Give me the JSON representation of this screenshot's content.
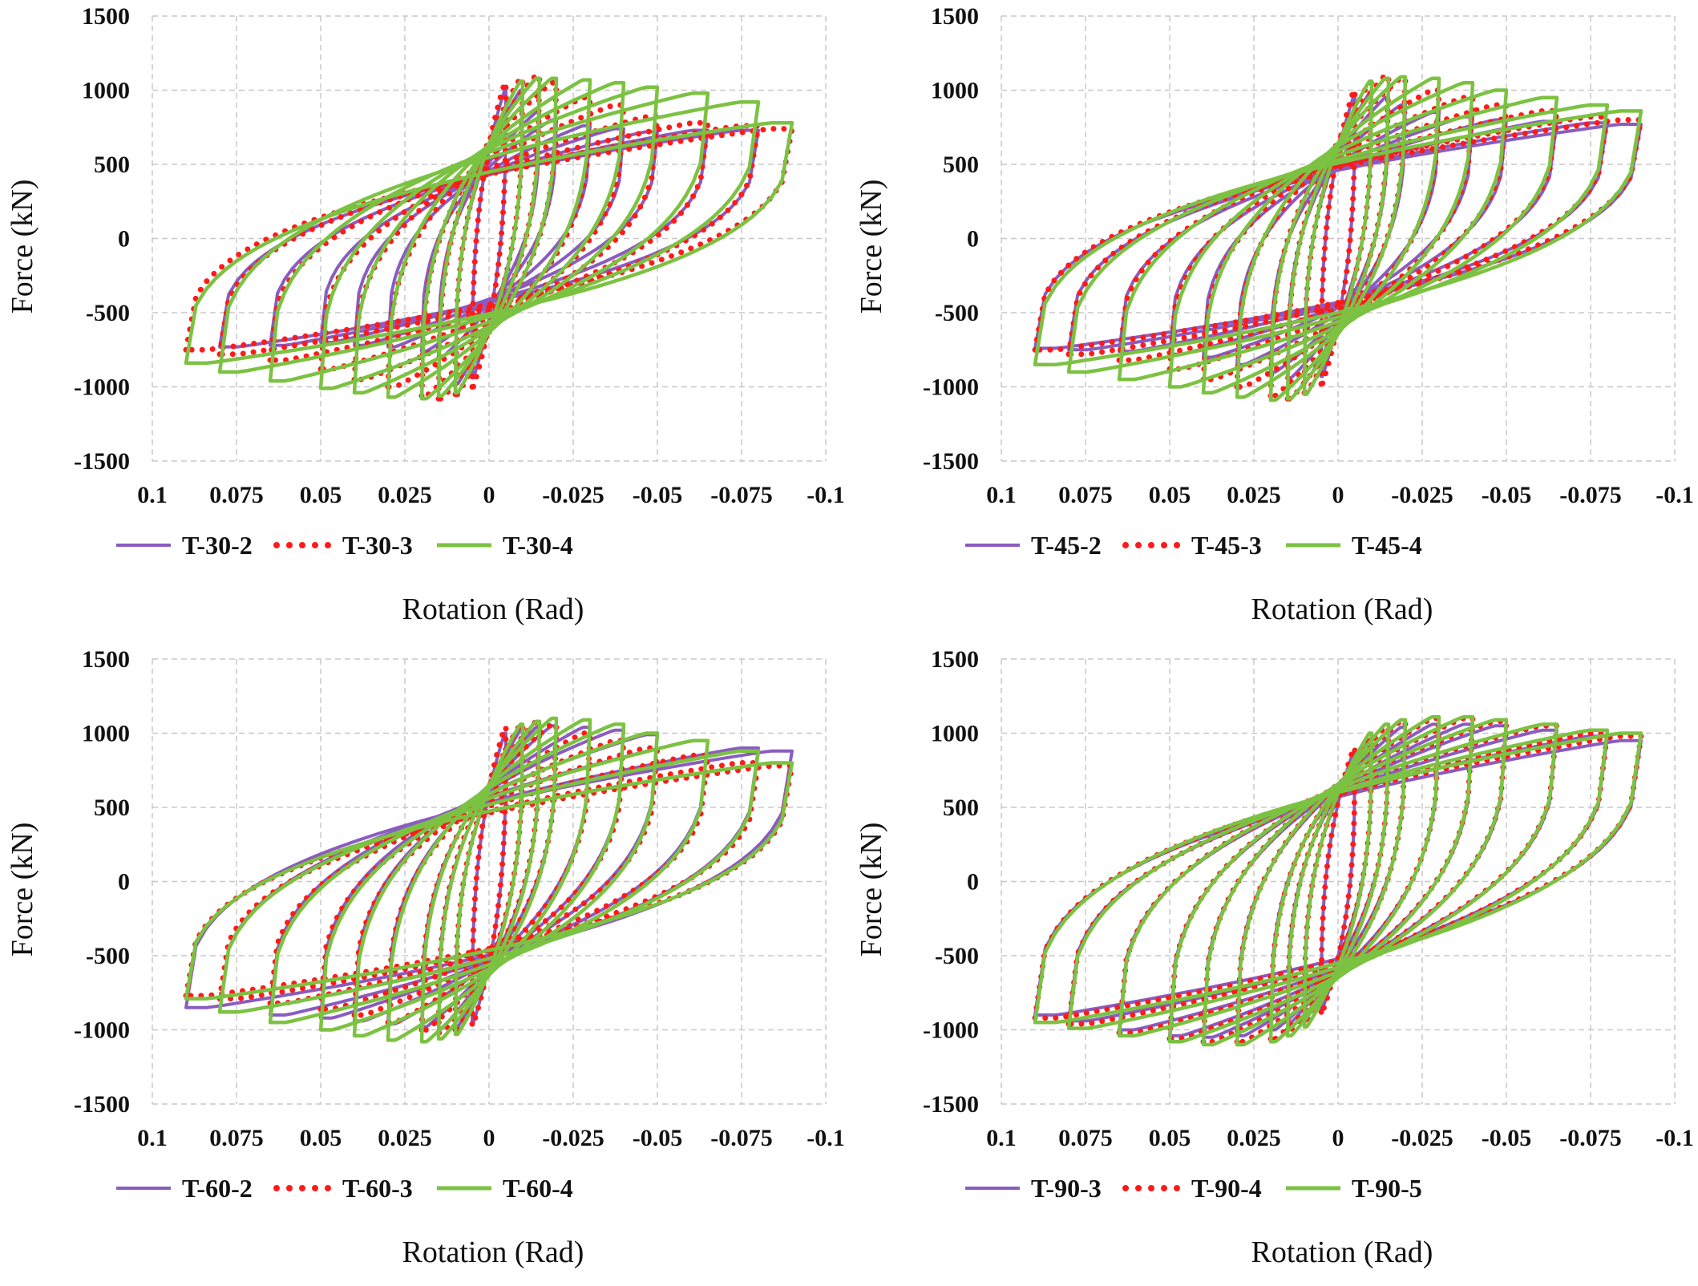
{
  "chart_data": [
    {
      "type": "line",
      "panel": "top-left",
      "xlabel": "Rotation (Rad)",
      "ylabel": "Force (kN)",
      "xlim": [
        0.1,
        -0.1
      ],
      "ylim": [
        -1500,
        1500
      ],
      "x_reversed": true,
      "x_ticks": [
        "0.1",
        "0.075",
        "0.05",
        "0.025",
        "0",
        "-0.025",
        "-0.05",
        "-0.075",
        "-0.1"
      ],
      "y_ticks": [
        "1500",
        "1000",
        "500",
        "0",
        "-500",
        "-1000",
        "-1500"
      ],
      "grid": true,
      "legend_position": "bottom",
      "series": [
        {
          "name": "T-30-2",
          "style": "solid",
          "color": "#8a5cc0",
          "amplitudes": [
            0.005,
            0.01,
            0.015,
            0.02,
            0.03,
            0.04,
            0.05,
            0.065,
            0.08
          ],
          "peak_force": [
            1000,
            1000,
            850,
            800,
            760,
            740,
            720,
            730,
            730
          ],
          "trough_force": [
            -940,
            -980,
            -800,
            -760,
            -730,
            -720,
            -700,
            -720,
            -730
          ]
        },
        {
          "name": "T-30-3",
          "style": "dotted",
          "color": "#ff1a1a",
          "amplitudes": [
            0.005,
            0.01,
            0.015,
            0.02,
            0.03,
            0.04,
            0.05,
            0.065,
            0.08,
            0.09
          ],
          "peak_force": [
            1050,
            1080,
            1100,
            1050,
            950,
            900,
            820,
            780,
            760,
            740
          ],
          "trough_force": [
            -1000,
            -1050,
            -1080,
            -1060,
            -1000,
            -950,
            -880,
            -820,
            -780,
            -750
          ]
        },
        {
          "name": "T-30-4",
          "style": "solid",
          "color": "#7cc242",
          "amplitudes": [
            0.01,
            0.015,
            0.02,
            0.03,
            0.04,
            0.05,
            0.065,
            0.08,
            0.09
          ],
          "peak_force": [
            1060,
            1080,
            1080,
            1070,
            1050,
            1020,
            980,
            920,
            780
          ],
          "trough_force": [
            -1040,
            -1060,
            -1080,
            -1070,
            -1040,
            -1010,
            -960,
            -900,
            -840
          ]
        }
      ]
    },
    {
      "type": "line",
      "panel": "top-right",
      "xlabel": "Rotation (Rad)",
      "ylabel": "Force (kN)",
      "xlim": [
        0.1,
        -0.1
      ],
      "ylim": [
        -1500,
        1500
      ],
      "x_reversed": true,
      "x_ticks": [
        "0.1",
        "0.075",
        "0.05",
        "0.025",
        "0",
        "-0.025",
        "-0.05",
        "-0.075",
        "-0.1"
      ],
      "y_ticks": [
        "1500",
        "1000",
        "500",
        "0",
        "-500",
        "-1000",
        "-1500"
      ],
      "grid": true,
      "legend_position": "bottom",
      "series": [
        {
          "name": "T-45-2",
          "style": "solid",
          "color": "#8a5cc0",
          "amplitudes": [
            0.005,
            0.01,
            0.015,
            0.02,
            0.03,
            0.04,
            0.05,
            0.065,
            0.08,
            0.09
          ],
          "peak_force": [
            960,
            980,
            950,
            900,
            850,
            820,
            800,
            790,
            780,
            770
          ],
          "trough_force": [
            -930,
            -960,
            -940,
            -900,
            -850,
            -800,
            -780,
            -760,
            -750,
            -740
          ]
        },
        {
          "name": "T-45-3",
          "style": "dotted",
          "color": "#ff1a1a",
          "amplitudes": [
            0.005,
            0.01,
            0.015,
            0.02,
            0.03,
            0.04,
            0.05,
            0.065,
            0.08,
            0.09
          ],
          "peak_force": [
            1000,
            1050,
            1100,
            1080,
            1000,
            950,
            900,
            860,
            820,
            800
          ],
          "trough_force": [
            -980,
            -1040,
            -1080,
            -1060,
            -1000,
            -950,
            -880,
            -820,
            -780,
            -750
          ]
        },
        {
          "name": "T-45-4",
          "style": "solid",
          "color": "#7cc242",
          "amplitudes": [
            0.01,
            0.015,
            0.02,
            0.03,
            0.04,
            0.05,
            0.065,
            0.08,
            0.09
          ],
          "peak_force": [
            1060,
            1080,
            1090,
            1080,
            1050,
            1000,
            950,
            900,
            860
          ],
          "trough_force": [
            -1050,
            -1080,
            -1090,
            -1070,
            -1040,
            -1000,
            -950,
            -900,
            -850
          ]
        }
      ]
    },
    {
      "type": "line",
      "panel": "bottom-left",
      "xlabel": "Rotation (Rad)",
      "ylabel": "Force (kN)",
      "xlim": [
        0.1,
        -0.1
      ],
      "ylim": [
        -1500,
        1500
      ],
      "x_reversed": true,
      "x_ticks": [
        "0.1",
        "0.075",
        "0.05",
        "0.025",
        "0",
        "-0.025",
        "-0.05",
        "-0.075",
        "-0.1"
      ],
      "y_ticks": [
        "1500",
        "1000",
        "500",
        "0",
        "-500",
        "-1000",
        "-1500"
      ],
      "grid": true,
      "legend_position": "bottom",
      "series": [
        {
          "name": "T-60-2",
          "style": "solid",
          "color": "#8a5cc0",
          "amplitudes": [
            0.005,
            0.01,
            0.015,
            0.02,
            0.03,
            0.04,
            0.05,
            0.065,
            0.08,
            0.09
          ],
          "peak_force": [
            1000,
            1020,
            1040,
            1050,
            1040,
            1020,
            990,
            950,
            900,
            880
          ],
          "trough_force": [
            -950,
            -980,
            -990,
            -980,
            -960,
            -940,
            -920,
            -900,
            -880,
            -850
          ]
        },
        {
          "name": "T-60-3",
          "style": "dotted",
          "color": "#ff1a1a",
          "amplitudes": [
            0.005,
            0.01,
            0.015,
            0.02,
            0.03,
            0.04,
            0.05,
            0.065,
            0.08,
            0.09
          ],
          "peak_force": [
            1040,
            1060,
            1080,
            1060,
            1000,
            950,
            900,
            850,
            800,
            780
          ],
          "trough_force": [
            -960,
            -1000,
            -1020,
            -1000,
            -950,
            -900,
            -860,
            -820,
            -790,
            -770
          ]
        },
        {
          "name": "T-60-4",
          "style": "solid",
          "color": "#7cc242",
          "amplitudes": [
            0.01,
            0.015,
            0.02,
            0.03,
            0.04,
            0.05,
            0.065,
            0.08,
            0.09
          ],
          "peak_force": [
            1060,
            1080,
            1100,
            1090,
            1060,
            1000,
            950,
            880,
            800
          ],
          "trough_force": [
            -1030,
            -1060,
            -1080,
            -1070,
            -1040,
            -1000,
            -950,
            -880,
            -790
          ]
        }
      ]
    },
    {
      "type": "line",
      "panel": "bottom-right",
      "xlabel": "Rotation (Rad)",
      "ylabel": "Force (kN)",
      "xlim": [
        0.1,
        -0.1
      ],
      "ylim": [
        -1500,
        1500
      ],
      "x_reversed": true,
      "x_ticks": [
        "0.1",
        "0.075",
        "0.05",
        "0.025",
        "0",
        "-0.025",
        "-0.05",
        "-0.075",
        "-0.1"
      ],
      "y_ticks": [
        "1500",
        "1000",
        "500",
        "0",
        "-500",
        "-1000",
        "-1500"
      ],
      "grid": true,
      "legend_position": "bottom",
      "series": [
        {
          "name": "T-90-3",
          "style": "solid",
          "color": "#8a5cc0",
          "amplitudes": [
            0.005,
            0.01,
            0.015,
            0.02,
            0.03,
            0.04,
            0.05,
            0.065,
            0.08,
            0.09
          ],
          "peak_force": [
            880,
            950,
            1000,
            1040,
            1060,
            1060,
            1050,
            1020,
            980,
            950
          ],
          "trough_force": [
            -860,
            -900,
            -950,
            -1000,
            -1040,
            -1050,
            -1040,
            -1000,
            -940,
            -900
          ]
        },
        {
          "name": "T-90-4",
          "style": "dotted",
          "color": "#ff1a1a",
          "amplitudes": [
            0.005,
            0.01,
            0.015,
            0.02,
            0.03,
            0.04,
            0.05,
            0.065,
            0.08,
            0.09
          ],
          "peak_force": [
            900,
            980,
            1040,
            1080,
            1100,
            1100,
            1080,
            1050,
            1000,
            980
          ],
          "trough_force": [
            -880,
            -940,
            -1000,
            -1060,
            -1080,
            -1080,
            -1060,
            -1020,
            -960,
            -920
          ]
        },
        {
          "name": "T-90-5",
          "style": "solid",
          "color": "#7cc242",
          "amplitudes": [
            0.01,
            0.015,
            0.02,
            0.03,
            0.04,
            0.05,
            0.065,
            0.08,
            0.09
          ],
          "peak_force": [
            1000,
            1060,
            1090,
            1110,
            1110,
            1090,
            1060,
            1020,
            1000
          ],
          "trough_force": [
            -980,
            -1040,
            -1080,
            -1100,
            -1100,
            -1080,
            -1040,
            -990,
            -950
          ]
        }
      ]
    }
  ]
}
